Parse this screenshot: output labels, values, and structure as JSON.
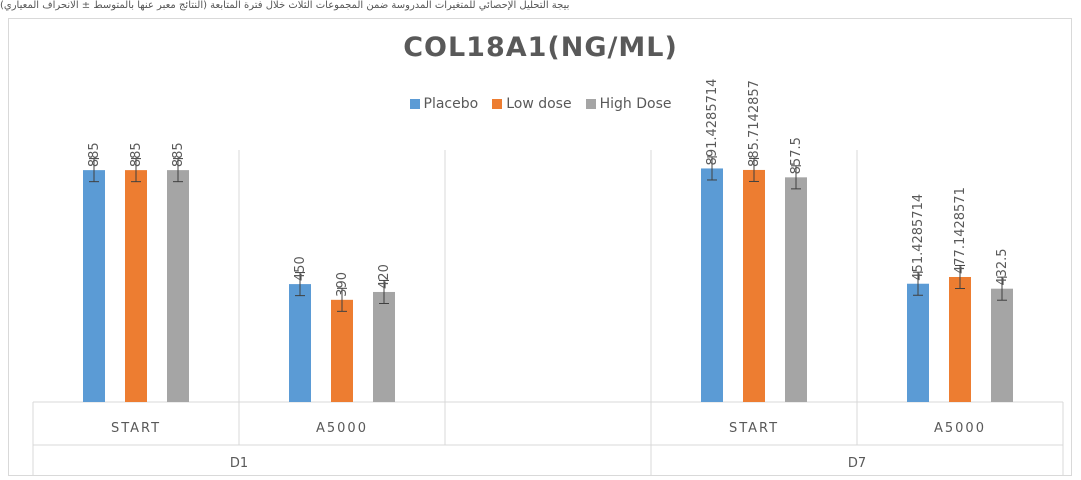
{
  "header_strip_text": "بيجة التحليل الإحصائي للمتغيرات المدروسة ضمن المجموعات الثلاث خلال فترة المتابعة (النتائج معبر عنها بالمتوسط ± الانحراف المعياري)",
  "chart_data": {
    "type": "bar",
    "title": "COL18A1(NG/ML)",
    "xlabel": "",
    "ylabel": "",
    "ylim": [
      0,
      1000
    ],
    "grid": false,
    "legend_position": "top",
    "groups": [
      {
        "label": "D1",
        "categories": [
          "START",
          "A5000"
        ]
      },
      {
        "label": "D7",
        "categories": [
          "START",
          "A5000"
        ]
      }
    ],
    "categories": [
      "START",
      "A5000",
      "START",
      "A5000"
    ],
    "series": [
      {
        "name": "Placebo",
        "color": "#5b9bd5",
        "values": [
          885,
          450,
          891.4285714,
          451.4285714
        ],
        "labels": [
          "885",
          "450",
          "891.4285714",
          "451.4285714"
        ],
        "errors": [
          88,
          88,
          88,
          88
        ]
      },
      {
        "name": "Low dose",
        "color": "#ed7d31",
        "values": [
          885,
          390,
          885.7142857,
          477.1428571
        ],
        "labels": [
          "885",
          "390",
          "885.7142857",
          "477.1428571"
        ],
        "errors": [
          88,
          88,
          88,
          88
        ]
      },
      {
        "name": "High Dose",
        "color": "#a5a5a5",
        "values": [
          885,
          420,
          857.5,
          432.5
        ],
        "labels": [
          "885",
          "420",
          "857.5",
          "432.5"
        ],
        "errors": [
          88,
          88,
          88,
          88
        ]
      }
    ]
  }
}
